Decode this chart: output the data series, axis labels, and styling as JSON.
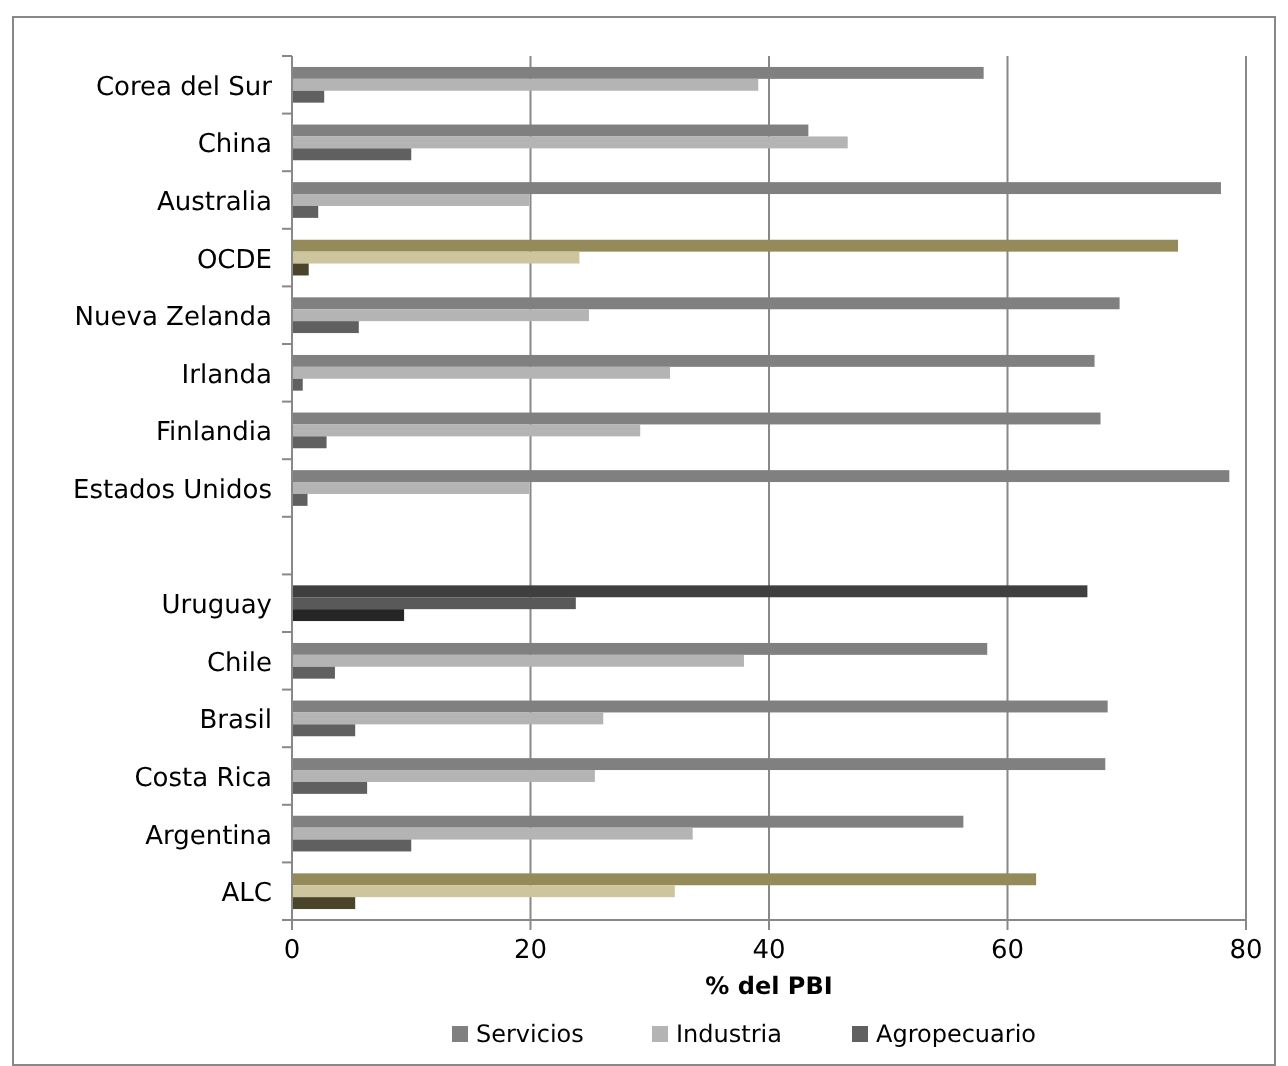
{
  "chart_data": {
    "type": "bar",
    "orientation": "horizontal",
    "xlabel": "% del PBI",
    "categories": [
      "Corea del Sur",
      "China",
      "Australia",
      "OCDE",
      "Nueva Zelanda",
      "Irlanda",
      "Finlandia",
      "Estados Unidos",
      null,
      "Uruguay",
      "Chile",
      "Brasil",
      "Costa Rica",
      "Argentina",
      "ALC"
    ],
    "series": [
      {
        "name": "Servicios",
        "color": "#808080",
        "colors": [
          "#808080",
          "#808080",
          "#808080",
          "#958b5a",
          "#808080",
          "#808080",
          "#808080",
          "#808080",
          null,
          "#3f3f3f",
          "#808080",
          "#808080",
          "#808080",
          "#808080",
          "#958b5a"
        ],
        "values": [
          58.0,
          43.3,
          77.9,
          74.3,
          69.4,
          67.3,
          67.8,
          78.6,
          null,
          66.7,
          58.3,
          68.4,
          68.2,
          56.3,
          62.4
        ]
      },
      {
        "name": "Industria",
        "color": "#b4b4b4",
        "colors": [
          "#b4b4b4",
          "#b4b4b4",
          "#b4b4b4",
          "#cdc59e",
          "#b4b4b4",
          "#b4b4b4",
          "#b4b4b4",
          "#b4b4b4",
          null,
          "#595959",
          "#b4b4b4",
          "#b4b4b4",
          "#b4b4b4",
          "#b4b4b4",
          "#cdc59e"
        ],
        "values": [
          39.1,
          46.6,
          19.9,
          24.1,
          24.9,
          31.7,
          29.2,
          19.9,
          null,
          23.8,
          37.9,
          26.1,
          25.4,
          33.6,
          32.1
        ]
      },
      {
        "name": "Agropecuario",
        "color": "#606060",
        "colors": [
          "#606060",
          "#606060",
          "#606060",
          "#4a452a",
          "#606060",
          "#606060",
          "#606060",
          "#606060",
          null,
          "#262626",
          "#606060",
          "#606060",
          "#606060",
          "#606060",
          "#4a452a"
        ],
        "values": [
          2.7,
          10.0,
          2.2,
          1.4,
          5.6,
          0.9,
          2.9,
          1.3,
          null,
          9.4,
          3.6,
          5.3,
          6.3,
          10.0,
          5.3
        ]
      }
    ],
    "xlim": [
      0,
      80
    ],
    "xticks": [
      0,
      20,
      40,
      60,
      80
    ],
    "grid": "x",
    "legend": "bottom"
  }
}
